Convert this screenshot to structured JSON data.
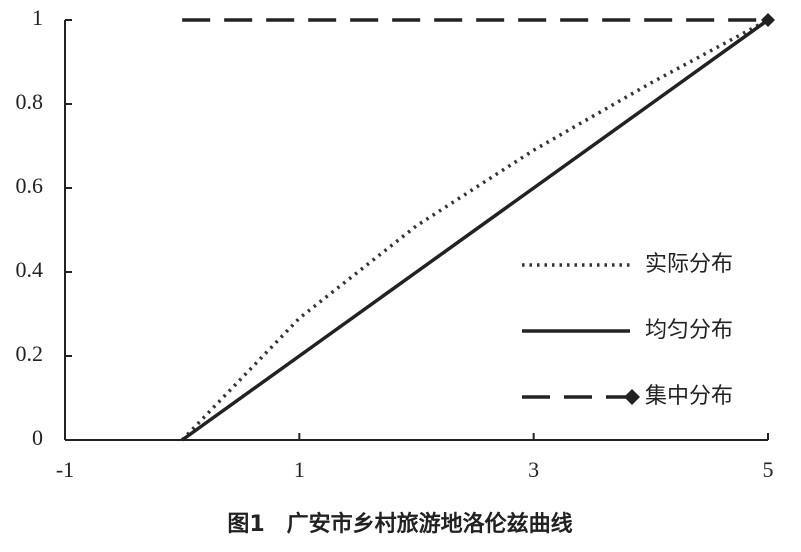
{
  "chart_data": {
    "type": "line",
    "caption": "图1　广安市乡村旅游地洛伦兹曲线",
    "x": [
      0,
      1,
      2,
      3,
      4,
      5
    ],
    "series": [
      {
        "name": "实际分布",
        "color": "#333333",
        "style": "dotted",
        "values": [
          0,
          0.29,
          0.51,
          0.69,
          0.85,
          1
        ]
      },
      {
        "name": "均匀分布",
        "color": "#222222",
        "style": "solid",
        "values": [
          0,
          0.2,
          0.4,
          0.6,
          0.8,
          1
        ]
      },
      {
        "name": "集中分布",
        "color": "#222222",
        "style": "dashed",
        "marker": "diamond",
        "values": [
          1,
          1,
          1,
          1,
          1,
          1
        ]
      }
    ],
    "xlim": [
      -1,
      5
    ],
    "xticks": [
      -1,
      1,
      3,
      5
    ],
    "ylim": [
      0,
      1
    ],
    "yticks": [
      0,
      0.2,
      0.4,
      0.6,
      0.8,
      1
    ],
    "legend": "lower-right"
  }
}
